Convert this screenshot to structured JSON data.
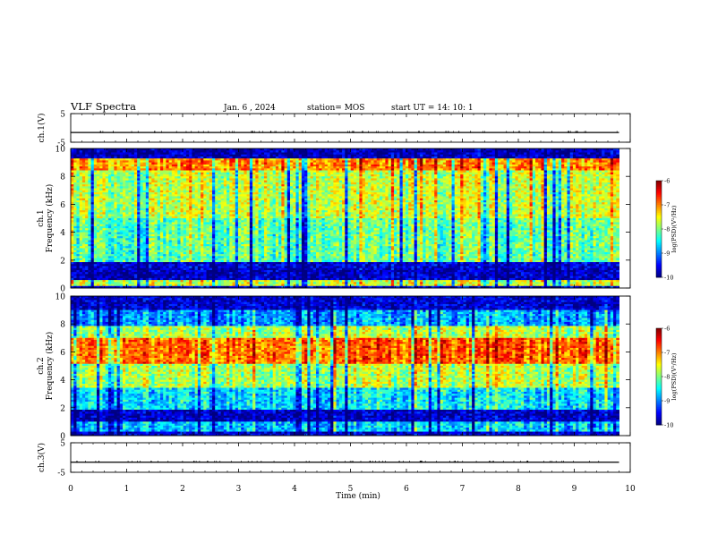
{
  "header": {
    "title": "VLF Spectra",
    "date": "Jan. 6 , 2024",
    "station": "station= MOS",
    "start": "start UT =  14: 10: 1"
  },
  "chart_data": [
    {
      "type": "line",
      "panel": "ch1-waveform",
      "ylabel": "ch.1(V)",
      "ylim": [
        -5,
        5
      ],
      "yticks": [
        5,
        -5
      ],
      "xlim": [
        0,
        10
      ],
      "series": [
        {
          "x": [
            0,
            9.8
          ],
          "y": [
            -1.6,
            -1.6
          ]
        }
      ]
    },
    {
      "type": "heatmap",
      "panel": "ch1-spectrogram",
      "ylabel_top": "ch.1",
      "ylabel": "Frequency (kHz)",
      "ylim": [
        0,
        10
      ],
      "yticks": [
        0,
        2,
        4,
        6,
        8,
        10
      ],
      "xlim": [
        0,
        10
      ],
      "data_end_min": 9.8,
      "colorbar": {
        "label": "log(PSD)(V²/Hz)",
        "range": [
          -10,
          -6
        ],
        "ticks": [
          "-6",
          "-7",
          "-8",
          "-9",
          "-10"
        ]
      },
      "bands": [
        {
          "from": 9.3,
          "to": 10,
          "level": 0.05
        },
        {
          "from": 8.5,
          "to": 9.3,
          "level": 0.72
        },
        {
          "from": 5.0,
          "to": 8.5,
          "level": 0.55
        },
        {
          "from": 1.8,
          "to": 5.0,
          "level": 0.45
        },
        {
          "from": 1.4,
          "to": 1.8,
          "level": 0.08
        },
        {
          "from": 0.6,
          "to": 1.4,
          "level": 0.06
        },
        {
          "from": 0.2,
          "to": 0.6,
          "level": 0.55
        },
        {
          "from": 0,
          "to": 0.2,
          "level": 0.1
        }
      ]
    },
    {
      "type": "heatmap",
      "panel": "ch2-spectrogram",
      "ylabel_top": "ch.2",
      "ylabel": "Frequency (kHz)",
      "ylim": [
        0,
        10
      ],
      "yticks": [
        0,
        2,
        4,
        6,
        8,
        10
      ],
      "xlim": [
        0,
        10
      ],
      "data_end_min": 9.8,
      "colorbar": {
        "label": "log(PSD)(V²/Hz)",
        "range": [
          -10,
          -6
        ],
        "ticks": [
          "-6",
          "-7",
          "-8",
          "-9",
          "-10"
        ]
      },
      "bands": [
        {
          "from": 9.0,
          "to": 10,
          "level": 0.08
        },
        {
          "from": 7.8,
          "to": 9.0,
          "level": 0.28
        },
        {
          "from": 7.0,
          "to": 7.8,
          "level": 0.55
        },
        {
          "from": 5.2,
          "to": 7.0,
          "level": 0.78
        },
        {
          "from": 3.5,
          "to": 5.2,
          "level": 0.55
        },
        {
          "from": 1.8,
          "to": 3.5,
          "level": 0.35
        },
        {
          "from": 1.0,
          "to": 1.8,
          "level": 0.07
        },
        {
          "from": 0.3,
          "to": 1.0,
          "level": 0.32
        },
        {
          "from": 0,
          "to": 0.3,
          "level": 0.08
        }
      ]
    },
    {
      "type": "line",
      "panel": "ch3-waveform",
      "ylabel": "ch.3(V)",
      "ylim": [
        -5,
        5
      ],
      "yticks": [
        5,
        -5
      ],
      "xlim": [
        0,
        10
      ],
      "series": [
        {
          "x": [
            0,
            9.8
          ],
          "y": [
            -1.6,
            -1.6
          ]
        }
      ]
    }
  ],
  "x_axis": {
    "label": "Time (min)",
    "ticks": [
      "0",
      "1",
      "2",
      "3",
      "4",
      "5",
      "6",
      "7",
      "8",
      "9",
      "10"
    ]
  }
}
